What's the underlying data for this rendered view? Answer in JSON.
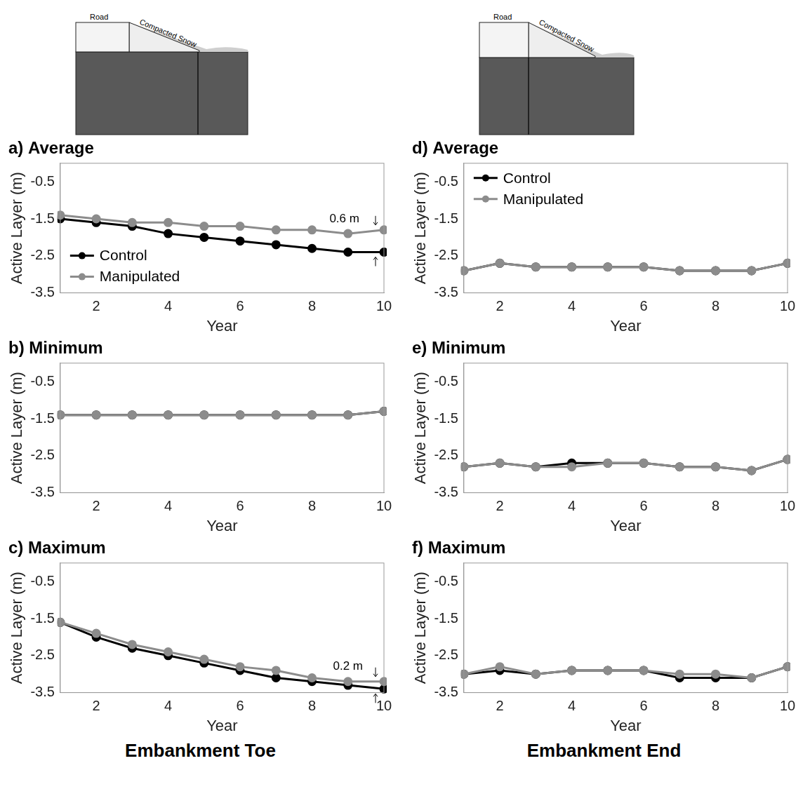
{
  "chart_data": [
    {
      "type": "line",
      "title": "a) Average",
      "x_label": "Year",
      "y_label": "Active Layer (m)",
      "x": [
        1,
        2,
        3,
        4,
        5,
        6,
        7,
        8,
        9,
        10
      ],
      "xlim": [
        1,
        10
      ],
      "xticks": [
        2,
        4,
        6,
        8,
        10
      ],
      "ylim": [
        -3.5,
        0
      ],
      "yticks": [
        -3.5,
        -2.5,
        -1.5,
        -0.5
      ],
      "grid": false,
      "legend": "lower left",
      "series": [
        {
          "name": "Control",
          "color": "#000000",
          "marker": "circle",
          "values": [
            -1.5,
            -1.6,
            -1.7,
            -1.9,
            -2.0,
            -2.1,
            -2.2,
            -2.3,
            -2.4,
            -2.4
          ]
        },
        {
          "name": "Manipulated",
          "color": "#8c8c8c",
          "marker": "circle",
          "values": [
            -1.4,
            -1.5,
            -1.6,
            -1.6,
            -1.7,
            -1.7,
            -1.8,
            -1.8,
            -1.9,
            -1.8
          ]
        }
      ],
      "annotations": [
        {
          "text": "0.6 m",
          "x": 8.9,
          "y": -1.5
        }
      ]
    },
    {
      "type": "line",
      "title": "b) Minimum",
      "x_label": "Year",
      "y_label": "Active Layer (m)",
      "x": [
        1,
        2,
        3,
        4,
        5,
        6,
        7,
        8,
        9,
        10
      ],
      "xlim": [
        1,
        10
      ],
      "xticks": [
        2,
        4,
        6,
        8,
        10
      ],
      "ylim": [
        -3.5,
        0
      ],
      "yticks": [
        -3.5,
        -2.5,
        -1.5,
        -0.5
      ],
      "grid": false,
      "series": [
        {
          "name": "Control",
          "color": "#000000",
          "marker": "circle",
          "values": [
            -1.4,
            -1.4,
            -1.4,
            -1.4,
            -1.4,
            -1.4,
            -1.4,
            -1.4,
            -1.4,
            -1.3
          ]
        },
        {
          "name": "Manipulated",
          "color": "#8c8c8c",
          "marker": "circle",
          "values": [
            -1.4,
            -1.4,
            -1.4,
            -1.4,
            -1.4,
            -1.4,
            -1.4,
            -1.4,
            -1.4,
            -1.3
          ]
        }
      ]
    },
    {
      "type": "line",
      "title": "c) Maximum",
      "x_label": "Year",
      "y_label": "Active Layer (m)",
      "x": [
        1,
        2,
        3,
        4,
        5,
        6,
        7,
        8,
        9,
        10
      ],
      "xlim": [
        1,
        10
      ],
      "xticks": [
        2,
        4,
        6,
        8,
        10
      ],
      "ylim": [
        -3.5,
        0
      ],
      "yticks": [
        -3.5,
        -2.5,
        -1.5,
        -0.5
      ],
      "grid": false,
      "series": [
        {
          "name": "Control",
          "color": "#000000",
          "marker": "circle",
          "values": [
            -1.6,
            -2.0,
            -2.3,
            -2.5,
            -2.7,
            -2.9,
            -3.1,
            -3.2,
            -3.3,
            -3.4
          ]
        },
        {
          "name": "Manipulated",
          "color": "#8c8c8c",
          "marker": "circle",
          "values": [
            -1.6,
            -1.9,
            -2.2,
            -2.4,
            -2.6,
            -2.8,
            -2.9,
            -3.1,
            -3.2,
            -3.2
          ]
        }
      ],
      "annotations": [
        {
          "text": "0.2 m",
          "x": 9.0,
          "y": -2.8
        }
      ]
    },
    {
      "type": "line",
      "title": "d) Average",
      "x_label": "Year",
      "y_label": "Active Layer (m)",
      "x": [
        1,
        2,
        3,
        4,
        5,
        6,
        7,
        8,
        9,
        10
      ],
      "xlim": [
        1,
        10
      ],
      "xticks": [
        2,
        4,
        6,
        8,
        10
      ],
      "ylim": [
        -3.5,
        0
      ],
      "yticks": [
        -3.5,
        -2.5,
        -1.5,
        -0.5
      ],
      "grid": false,
      "legend": "upper left",
      "series": [
        {
          "name": "Control",
          "color": "#000000",
          "marker": "circle",
          "values": [
            -2.9,
            -2.7,
            -2.8,
            -2.8,
            -2.8,
            -2.8,
            -2.9,
            -2.9,
            -2.9,
            -2.7
          ]
        },
        {
          "name": "Manipulated",
          "color": "#8c8c8c",
          "marker": "circle",
          "values": [
            -2.9,
            -2.7,
            -2.8,
            -2.8,
            -2.8,
            -2.8,
            -2.9,
            -2.9,
            -2.9,
            -2.7
          ]
        }
      ]
    },
    {
      "type": "line",
      "title": "e) Minimum",
      "x_label": "Year",
      "y_label": "Active Layer (m)",
      "x": [
        1,
        2,
        3,
        4,
        5,
        6,
        7,
        8,
        9,
        10
      ],
      "xlim": [
        1,
        10
      ],
      "xticks": [
        2,
        4,
        6,
        8,
        10
      ],
      "ylim": [
        -3.5,
        0
      ],
      "yticks": [
        -3.5,
        -2.5,
        -1.5,
        -0.5
      ],
      "grid": false,
      "series": [
        {
          "name": "Control",
          "color": "#000000",
          "marker": "circle",
          "values": [
            -2.8,
            -2.7,
            -2.8,
            -2.7,
            -2.7,
            -2.7,
            -2.8,
            -2.8,
            -2.9,
            -2.6
          ]
        },
        {
          "name": "Manipulated",
          "color": "#8c8c8c",
          "marker": "circle",
          "values": [
            -2.8,
            -2.7,
            -2.8,
            -2.8,
            -2.7,
            -2.7,
            -2.8,
            -2.8,
            -2.9,
            -2.6
          ]
        }
      ]
    },
    {
      "type": "line",
      "title": "f) Maximum",
      "x_label": "Year",
      "y_label": "Active Layer (m)",
      "x": [
        1,
        2,
        3,
        4,
        5,
        6,
        7,
        8,
        9,
        10
      ],
      "xlim": [
        1,
        10
      ],
      "xticks": [
        2,
        4,
        6,
        8,
        10
      ],
      "ylim": [
        -3.5,
        0
      ],
      "yticks": [
        -3.5,
        -2.5,
        -1.5,
        -0.5
      ],
      "grid": false,
      "series": [
        {
          "name": "Control",
          "color": "#000000",
          "marker": "circle",
          "values": [
            -3.0,
            -2.9,
            -3.0,
            -2.9,
            -2.9,
            -2.9,
            -3.1,
            -3.1,
            -3.1,
            -2.8
          ]
        },
        {
          "name": "Manipulated",
          "color": "#8c8c8c",
          "marker": "circle",
          "values": [
            -3.0,
            -2.8,
            -3.0,
            -2.9,
            -2.9,
            -2.9,
            -3.0,
            -3.0,
            -3.1,
            -2.8
          ]
        }
      ]
    }
  ],
  "columns": [
    {
      "label": "Embankment Toe",
      "schematic": {
        "road": "Road",
        "snow": "Compacted Snow"
      }
    },
    {
      "label": "Embankment End",
      "schematic": {
        "road": "Road",
        "snow": "Compacted Snow"
      }
    }
  ]
}
